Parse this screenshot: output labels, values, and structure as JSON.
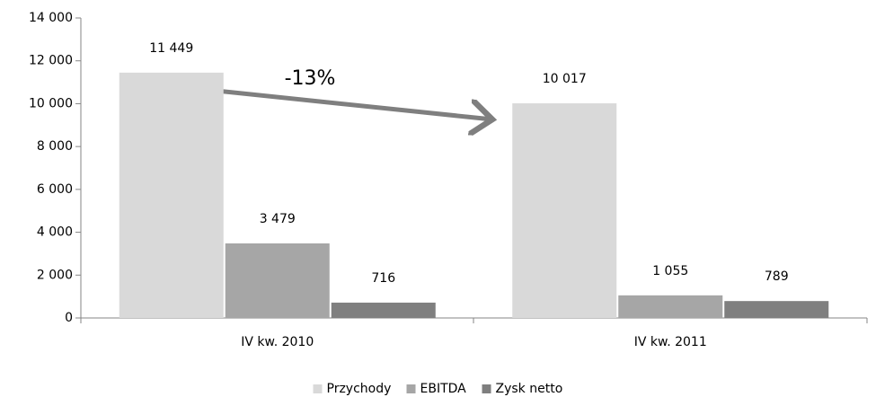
{
  "chart_data": {
    "type": "bar",
    "categories": [
      "IV kw. 2010",
      "IV kw. 2011"
    ],
    "series": [
      {
        "name": "Przychody",
        "color": "#d9d9d9",
        "values": [
          11449,
          10017
        ],
        "value_labels": [
          "11 449",
          "10 017"
        ]
      },
      {
        "name": "EBITDA",
        "color": "#a6a6a6",
        "values": [
          3479,
          1055
        ],
        "value_labels": [
          "3 479",
          "1 055"
        ]
      },
      {
        "name": "Zysk netto",
        "color": "#7f7f7f",
        "values": [
          716,
          789
        ]
      }
    ],
    "annotation": "-13%",
    "ylim": [
      0,
      14000
    ],
    "yticks": [
      0,
      {
        "value": 2000,
        "label": "2 000"
      },
      {
        "value": 4000,
        "label": "4 000"
      },
      {
        "value": 6000,
        "label": "6 000"
      },
      {
        "value": 8000,
        "label": "8 000"
      },
      {
        "value": 10000,
        "label": "10 000"
      },
      {
        "value": 12000,
        "label": "12 000"
      },
      {
        "value": 14000,
        "label": "14 000"
      }
    ],
    "grid": false,
    "legend": "bottom"
  }
}
